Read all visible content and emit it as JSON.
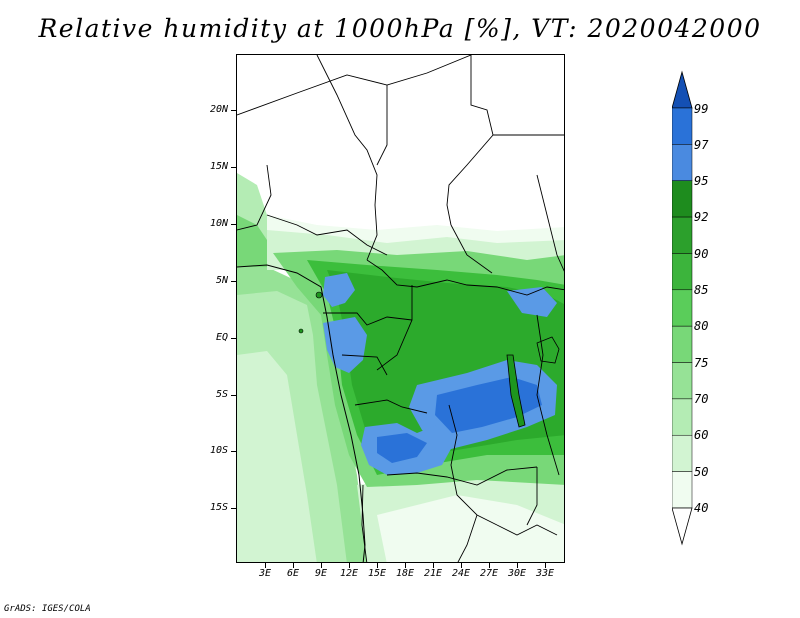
{
  "title": "Relative humidity at 1000hPa [%], VT: 2020042000",
  "credit": "GrADS: IGES/COLA",
  "map": {
    "lat_labels": [
      "20N",
      "15N",
      "10N",
      "5N",
      "EQ",
      "5S",
      "10S",
      "15S"
    ],
    "lon_labels": [
      "3E",
      "6E",
      "9E",
      "12E",
      "15E",
      "18E",
      "21E",
      "24E",
      "27E",
      "30E",
      "33E"
    ],
    "colors": {
      "c40": "#f0fcf0",
      "c50": "#d2f4d2",
      "c60": "#b4ecb4",
      "c70": "#96e296",
      "c75": "#78d878",
      "c80": "#5acd5a",
      "c85": "#3cbe3c",
      "c90": "#2caa2c",
      "c92": "#1e961e",
      "c95": "#5a9ae6",
      "c97": "#2a72d8",
      "c99": "#1450b4"
    }
  },
  "colorbar": {
    "levels": [
      "99",
      "97",
      "95",
      "92",
      "90",
      "85",
      "80",
      "75",
      "70",
      "60",
      "50",
      "40"
    ],
    "colors": [
      "#2a72d8",
      "#4a8ae0",
      "#1e8c1e",
      "#2ca02c",
      "#3cb43c",
      "#5acd5a",
      "#78d878",
      "#96e296",
      "#b4ecb4",
      "#d2f4d2",
      "#f0fcf0"
    ],
    "top_arrow_color": "#1450b4",
    "bottom_arrow_color": "#ffffff"
  }
}
